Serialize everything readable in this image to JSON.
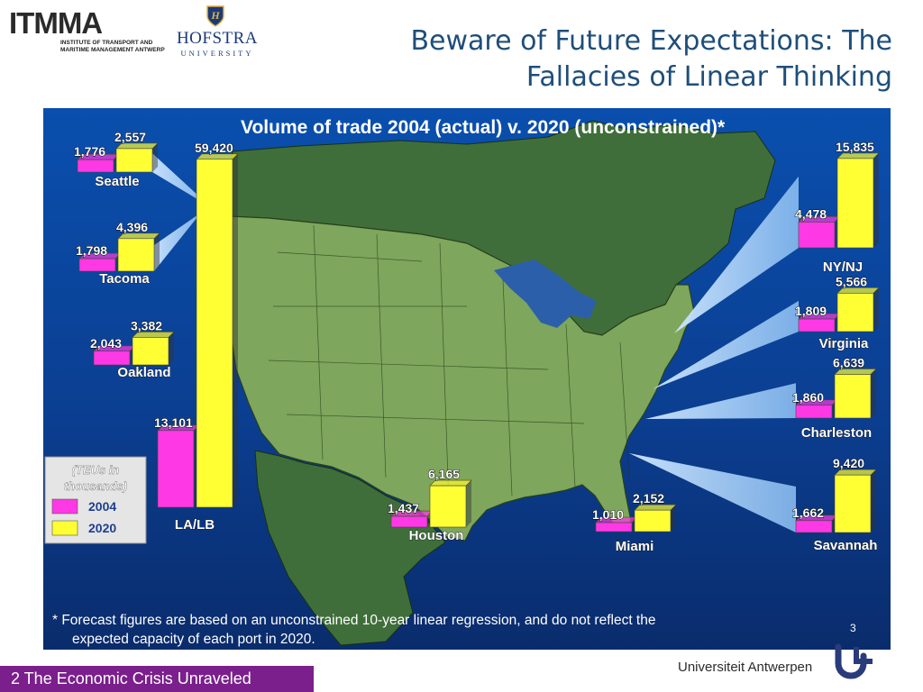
{
  "header": {
    "title_line1": "Beware of Future Expectations: The",
    "title_line2": "Fallacies of Linear Thinking"
  },
  "logos": {
    "itmma_word": "ITMMA",
    "itmma_sub1": "INSTITUTE OF TRANSPORT AND",
    "itmma_sub2": "MARITIME MANAGEMENT ANTWERP",
    "hofstra_word": "HOFSTRA",
    "hofstra_sub": "UNIVERSITY",
    "university": "Universiteit Antwerpen"
  },
  "footer": {
    "tag": "2 The Economic Crisis Unraveled",
    "page_number": "3"
  },
  "chart_data": {
    "type": "bar",
    "title": "Volume of trade 2004 (actual) v. 2020 (unconstrained)*",
    "unit_label_line1": "(TEUs in",
    "unit_label_line2": "thousands)",
    "legend": [
      {
        "name": "2004",
        "color": "#ff38e6"
      },
      {
        "name": "2020",
        "color": "#ffff33"
      }
    ],
    "legend_placement": "left",
    "series_names": [
      "2004",
      "2020"
    ],
    "ports": [
      {
        "name": "Seattle",
        "v2004": 1776,
        "v2020": 2557
      },
      {
        "name": "Tacoma",
        "v2004": 1798,
        "v2020": 4396
      },
      {
        "name": "Oakland",
        "v2004": 2043,
        "v2020": 3382
      },
      {
        "name": "LA/LB",
        "v2004": 13101,
        "v2020": 59420
      },
      {
        "name": "Houston",
        "v2004": 1437,
        "v2020": 6165
      },
      {
        "name": "Miami",
        "v2004": 1010,
        "v2020": 2152
      },
      {
        "name": "Savannah",
        "v2004": 1662,
        "v2020": 9420
      },
      {
        "name": "Charleston",
        "v2004": 1860,
        "v2020": 6639
      },
      {
        "name": "Virginia",
        "v2004": 1809,
        "v2020": 5566
      },
      {
        "name": "NY/NJ",
        "v2004": 4478,
        "v2020": 15835
      }
    ],
    "value_labels": {
      "Seattle": [
        "1,776",
        "2,557"
      ],
      "Tacoma": [
        "1,798",
        "4,396"
      ],
      "Oakland": [
        "2,043",
        "3,382"
      ],
      "LA/LB": [
        "13,101",
        "59,420"
      ],
      "Houston": [
        "1,437",
        "6,165"
      ],
      "Miami": [
        "1,010",
        "2,152"
      ],
      "Savannah": [
        "1,662",
        "9,420"
      ],
      "Charleston": [
        "1,860",
        "6,639"
      ],
      "Virginia": [
        "1,809",
        "5,566"
      ],
      "NY/NJ": [
        "4,478",
        "15,835"
      ]
    },
    "footnote_line1": "*    Forecast figures are based on an unconstrained 10-year linear regression, and do not reflect the",
    "footnote_line2": "expected capacity of each port in 2020."
  }
}
